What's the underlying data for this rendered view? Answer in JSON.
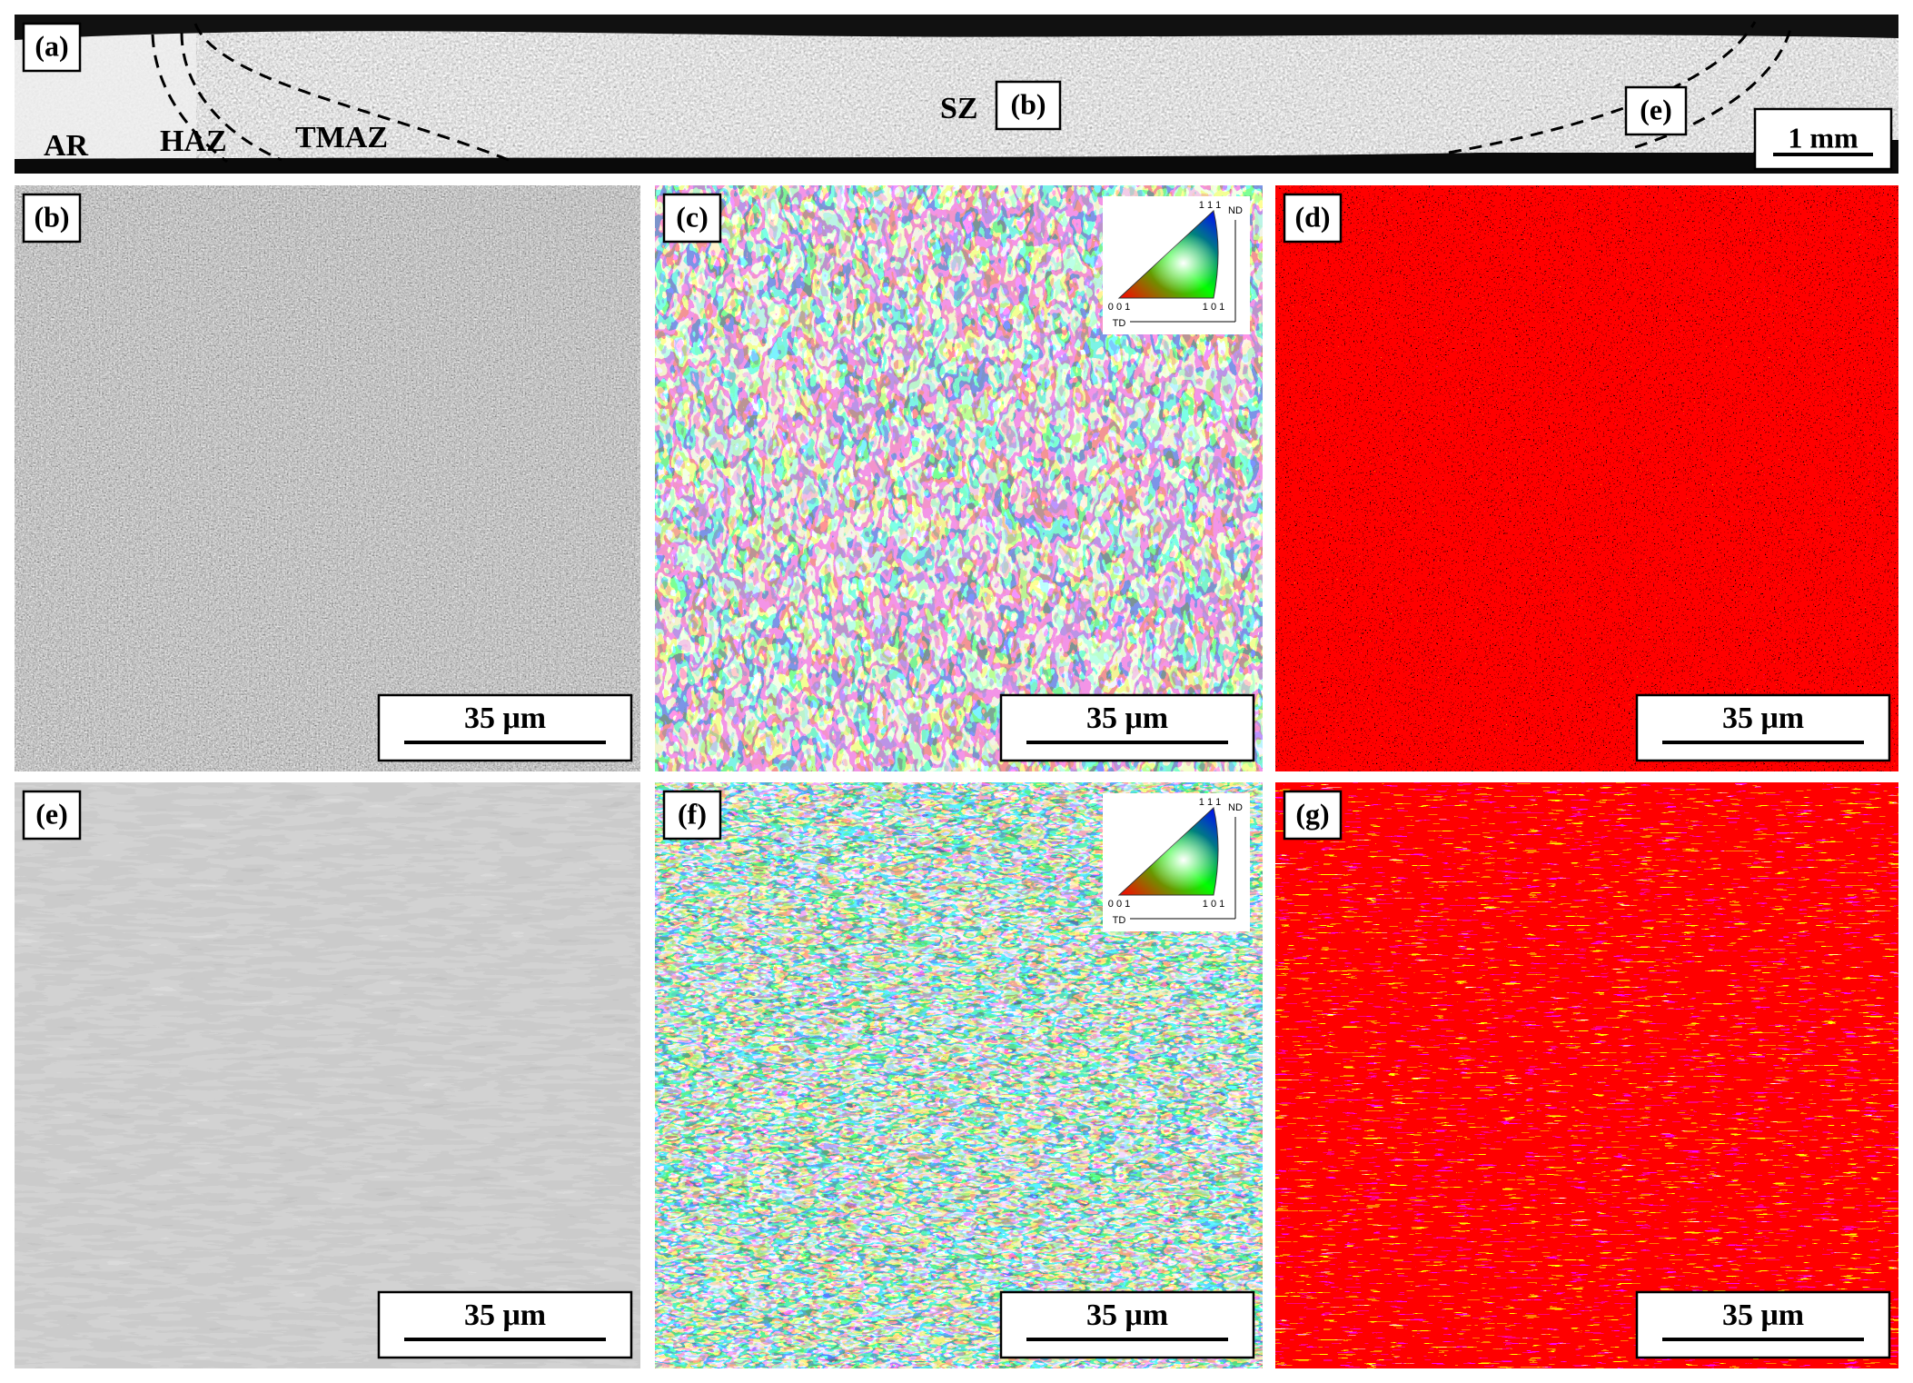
{
  "panels": [
    {
      "label": "(a)",
      "annotations": [
        "AR",
        "HAZ",
        "TMAZ",
        "SZ"
      ],
      "insets": [
        "(b)",
        "(e)"
      ],
      "scale_bar": "1 mm"
    },
    {
      "label": "(b)",
      "scale_bar": "35 μm"
    },
    {
      "label": "(c)",
      "scale_bar": "35 μm"
    },
    {
      "label": "(d)",
      "scale_bar": "35 μm"
    },
    {
      "label": "(e)",
      "scale_bar": "35 μm"
    },
    {
      "label": "(f)",
      "scale_bar": "35 μm"
    },
    {
      "label": "(g)",
      "scale_bar": "35 μm"
    }
  ],
  "ipf_legend": {
    "top": "1 1 1",
    "left": "0 0 1",
    "right": "1 0 1",
    "nd": "ND",
    "td": "TD"
  }
}
